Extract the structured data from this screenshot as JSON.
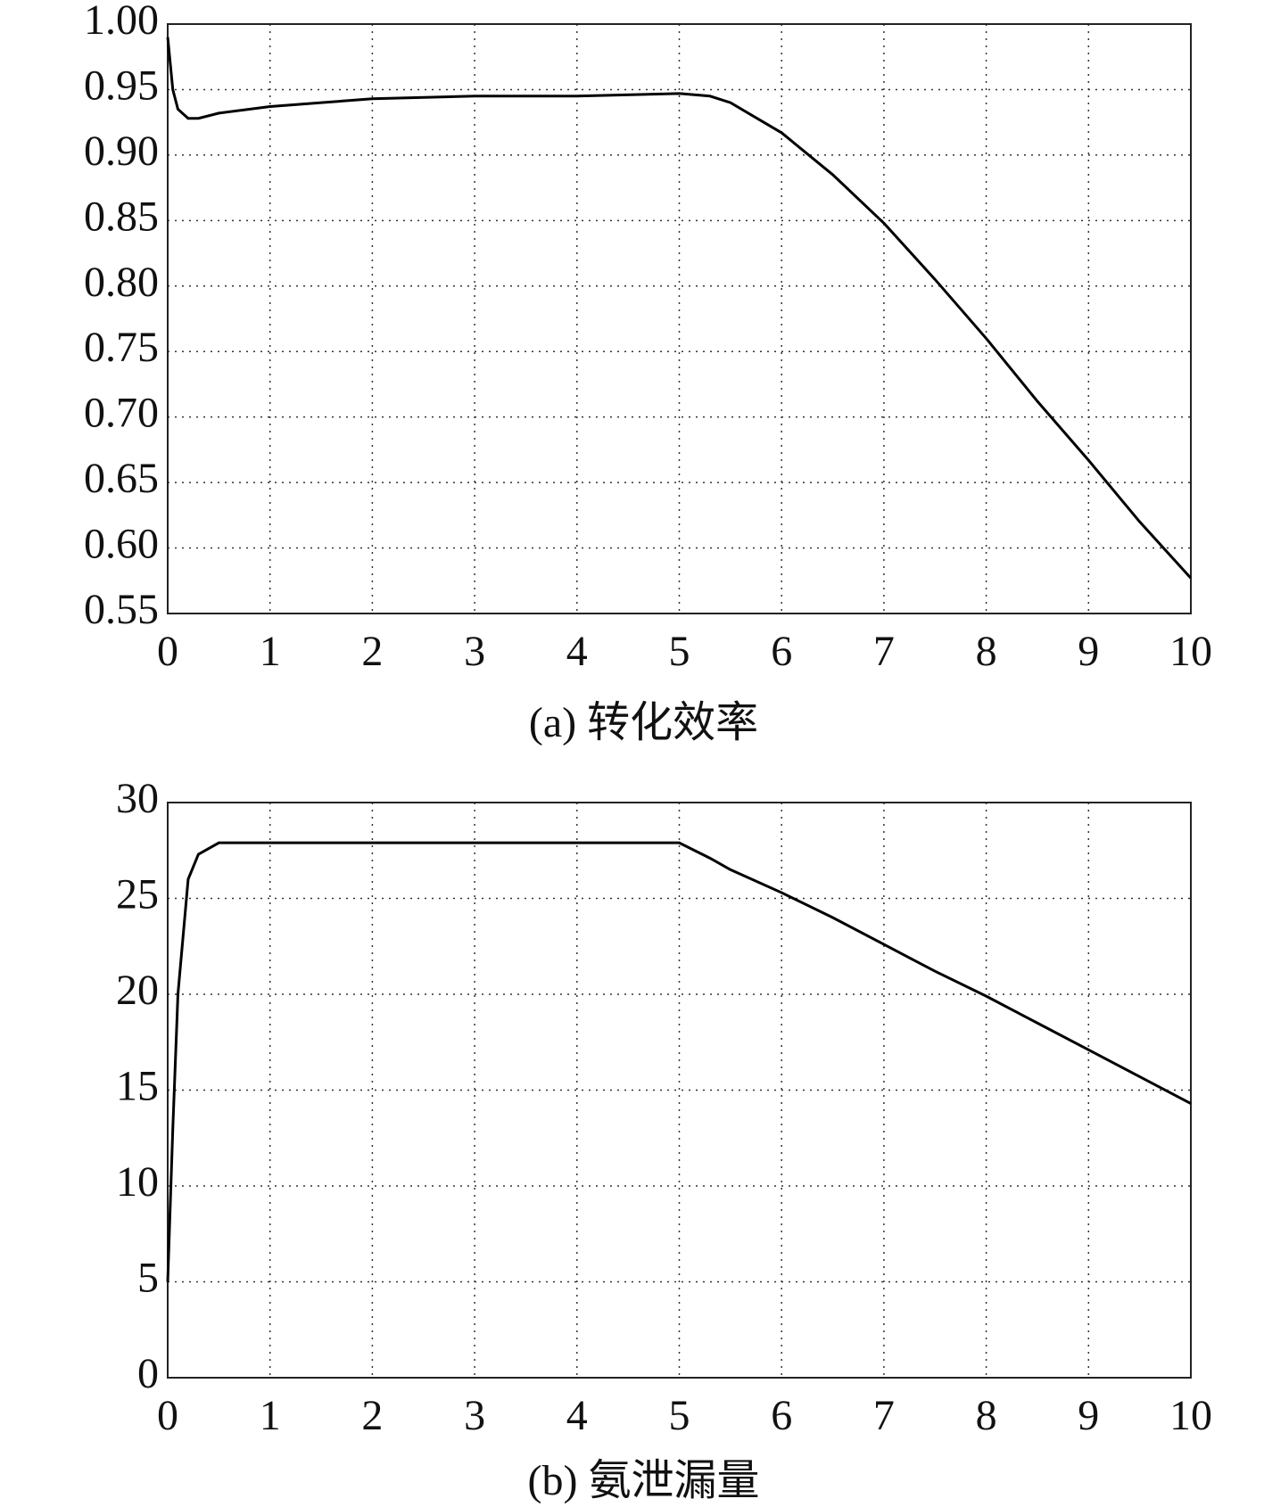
{
  "chart_data": [
    {
      "type": "line",
      "title": "(a) 转化效率",
      "x": [
        0,
        0.05,
        0.1,
        0.2,
        0.3,
        0.5,
        1,
        1.5,
        2,
        3,
        4,
        5,
        5.3,
        5.5,
        6,
        6.5,
        7,
        7.5,
        8,
        8.5,
        9,
        9.5,
        10
      ],
      "series": [
        {
          "color": "#000000",
          "values": [
            0.99,
            0.95,
            0.935,
            0.928,
            0.928,
            0.932,
            0.937,
            0.94,
            0.943,
            0.945,
            0.945,
            0.947,
            0.945,
            0.94,
            0.917,
            0.885,
            0.848,
            0.805,
            0.76,
            0.712,
            0.667,
            0.62,
            0.577
          ]
        }
      ],
      "xlim": [
        0,
        10
      ],
      "xticks": [
        0,
        1,
        2,
        3,
        4,
        5,
        6,
        7,
        8,
        9,
        10
      ],
      "ylim": [
        0.55,
        1
      ],
      "yticks": [
        0.55,
        {
          "value": 0.6,
          "label": "0.60"
        },
        0.65,
        {
          "value": 0.7,
          "label": "0.70"
        },
        0.75,
        {
          "value": 0.8,
          "label": "0.80"
        },
        0.85,
        {
          "value": 0.9,
          "label": "0.90"
        },
        0.95,
        {
          "value": 1,
          "label": "1.00"
        }
      ],
      "grid": true
    },
    {
      "type": "line",
      "title": "(b) 氨泄漏量",
      "x": [
        0,
        0.05,
        0.1,
        0.2,
        0.3,
        0.5,
        1,
        2,
        3,
        4,
        5,
        5.3,
        5.5,
        6,
        6.5,
        7,
        7.5,
        8,
        8.5,
        9,
        9.5,
        10
      ],
      "series": [
        {
          "color": "#000000",
          "values": [
            5,
            13,
            20,
            26,
            27.3,
            27.9,
            27.9,
            27.9,
            27.9,
            27.9,
            27.9,
            27.1,
            26.5,
            25.3,
            24,
            22.6,
            21.2,
            19.9,
            18.5,
            17.1,
            15.7,
            14.3
          ]
        }
      ],
      "xlim": [
        0,
        10
      ],
      "xticks": [
        0,
        1,
        2,
        3,
        4,
        5,
        6,
        7,
        8,
        9,
        10
      ],
      "ylim": [
        0,
        30
      ],
      "yticks": [
        0,
        5,
        10,
        15,
        20,
        25,
        30
      ],
      "grid": true
    }
  ]
}
